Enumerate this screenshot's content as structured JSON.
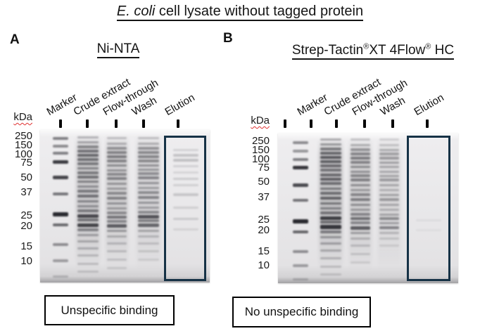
{
  "figure_title": {
    "italic_part": "E. coli",
    "normal_part": " cell lysate without tagged protein"
  },
  "panels": [
    {
      "panel_letter": "A",
      "method_title": "Ni-NTA",
      "kda_unit_label": "kDa",
      "ladder_labels": [
        "250",
        "150",
        "100",
        "75",
        "50",
        "37",
        "25",
        "20",
        "15",
        "10"
      ],
      "lanes": [
        {
          "name": "Marker",
          "bands": [
            [
              197,
              0.5,
              4
            ],
            [
              208,
              0.45,
              4
            ],
            [
              218,
              0.5,
              4
            ],
            [
              230,
              0.82,
              5
            ],
            [
              252,
              0.78,
              5
            ],
            [
              276,
              0.55,
              4
            ],
            [
              305,
              0.9,
              6
            ],
            [
              320,
              0.6,
              4
            ],
            [
              348,
              0.42,
              4
            ],
            [
              371,
              0.35,
              4
            ],
            [
              393,
              0.2,
              3
            ]
          ]
        },
        {
          "name": "Crude extract",
          "bands": [
            [
              195,
              0.25,
              3
            ],
            [
              202,
              0.3,
              3
            ],
            [
              209,
              0.42,
              4
            ],
            [
              215,
              0.5,
              4
            ],
            [
              221,
              0.55,
              4
            ],
            [
              227,
              0.5,
              4
            ],
            [
              233,
              0.45,
              4
            ],
            [
              239,
              0.4,
              3
            ],
            [
              246,
              0.45,
              4
            ],
            [
              252,
              0.5,
              4
            ],
            [
              258,
              0.42,
              3
            ],
            [
              265,
              0.35,
              3
            ],
            [
              272,
              0.45,
              4
            ],
            [
              279,
              0.5,
              4
            ],
            [
              286,
              0.4,
              3
            ],
            [
              293,
              0.35,
              3
            ],
            [
              300,
              0.45,
              4
            ],
            [
              307,
              0.72,
              5
            ],
            [
              313,
              0.5,
              4
            ],
            [
              320,
              0.75,
              5
            ],
            [
              327,
              0.42,
              4
            ],
            [
              334,
              0.3,
              3
            ],
            [
              343,
              0.26,
              3
            ],
            [
              353,
              0.24,
              3
            ],
            [
              363,
              0.2,
              3
            ],
            [
              375,
              0.18,
              3
            ],
            [
              386,
              0.15,
              3
            ]
          ]
        },
        {
          "name": "Flow-through",
          "bands": [
            [
              196,
              0.2,
              3
            ],
            [
              204,
              0.26,
              3
            ],
            [
              211,
              0.36,
              4
            ],
            [
              217,
              0.42,
              4
            ],
            [
              223,
              0.46,
              4
            ],
            [
              229,
              0.42,
              4
            ],
            [
              235,
              0.38,
              3
            ],
            [
              242,
              0.34,
              3
            ],
            [
              248,
              0.38,
              4
            ],
            [
              254,
              0.42,
              4
            ],
            [
              261,
              0.34,
              3
            ],
            [
              268,
              0.3,
              3
            ],
            [
              275,
              0.38,
              4
            ],
            [
              282,
              0.42,
              4
            ],
            [
              289,
              0.34,
              3
            ],
            [
              296,
              0.3,
              3
            ],
            [
              303,
              0.38,
              4
            ],
            [
              309,
              0.5,
              4
            ],
            [
              315,
              0.4,
              4
            ],
            [
              321,
              0.62,
              5
            ],
            [
              328,
              0.34,
              3
            ],
            [
              336,
              0.24,
              3
            ],
            [
              346,
              0.2,
              3
            ],
            [
              357,
              0.18,
              3
            ],
            [
              369,
              0.15,
              3
            ],
            [
              381,
              0.12,
              3
            ]
          ]
        },
        {
          "name": "Wash",
          "bands": [
            [
              196,
              0.2,
              3
            ],
            [
              204,
              0.26,
              3
            ],
            [
              211,
              0.36,
              4
            ],
            [
              217,
              0.4,
              4
            ],
            [
              223,
              0.42,
              4
            ],
            [
              229,
              0.4,
              4
            ],
            [
              235,
              0.36,
              3
            ],
            [
              241,
              0.33,
              3
            ],
            [
              247,
              0.37,
              4
            ],
            [
              253,
              0.42,
              4
            ],
            [
              260,
              0.34,
              3
            ],
            [
              267,
              0.29,
              3
            ],
            [
              274,
              0.37,
              4
            ],
            [
              281,
              0.42,
              4
            ],
            [
              288,
              0.33,
              3
            ],
            [
              295,
              0.29,
              3
            ],
            [
              302,
              0.38,
              4
            ],
            [
              308,
              0.68,
              5
            ],
            [
              314,
              0.45,
              4
            ],
            [
              320,
              0.58,
              5
            ],
            [
              328,
              0.28,
              3
            ],
            [
              336,
              0.2,
              3
            ],
            [
              346,
              0.16,
              3
            ],
            [
              357,
              0.13,
              3
            ],
            [
              369,
              0.1,
              3
            ]
          ]
        },
        {
          "name": "Elution",
          "bands": [
            [
              213,
              0.12,
              3
            ],
            [
              221,
              0.18,
              4
            ],
            [
              228,
              0.2,
              4
            ],
            [
              236,
              0.12,
              3
            ],
            [
              245,
              0.1,
              3
            ],
            [
              254,
              0.14,
              3
            ],
            [
              263,
              0.12,
              3
            ],
            [
              277,
              0.16,
              4
            ],
            [
              295,
              0.12,
              3
            ],
            [
              311,
              0.14,
              3
            ],
            [
              326,
              0.09,
              3
            ]
          ]
        }
      ],
      "result_caption": "Unspecific binding"
    },
    {
      "panel_letter": "B",
      "method_title_parts": {
        "name1": "Strep-Tactin",
        "reg1": "®",
        "name2": "XT 4Flow",
        "reg2": "®",
        "name3": " HC"
      },
      "kda_unit_label": "kDa",
      "ladder_labels": [
        "250",
        "150",
        "100",
        "75",
        "50",
        "37",
        "25",
        "20",
        "15",
        "10"
      ],
      "lanes": [
        {
          "name": "Marker",
          "bands": [
            [
              203,
              0.45,
              4
            ],
            [
              215,
              0.4,
              4
            ],
            [
              227,
              0.5,
              4
            ],
            [
              238,
              0.85,
              5
            ],
            [
              263,
              0.75,
              5
            ],
            [
              285,
              0.55,
              4
            ],
            [
              315,
              0.9,
              6
            ],
            [
              330,
              0.62,
              4
            ],
            [
              358,
              0.42,
              4
            ],
            [
              378,
              0.35,
              4
            ],
            [
              397,
              0.2,
              3
            ]
          ]
        },
        {
          "name": "Crude extract",
          "bands": [
            [
              198,
              0.3,
              3
            ],
            [
              205,
              0.36,
              3
            ],
            [
              212,
              0.48,
              4
            ],
            [
              218,
              0.56,
              4
            ],
            [
              224,
              0.62,
              4
            ],
            [
              230,
              0.58,
              4
            ],
            [
              236,
              0.52,
              4
            ],
            [
              242,
              0.47,
              4
            ],
            [
              249,
              0.52,
              4
            ],
            [
              255,
              0.58,
              4
            ],
            [
              261,
              0.5,
              4
            ],
            [
              268,
              0.44,
              3
            ],
            [
              275,
              0.5,
              4
            ],
            [
              282,
              0.56,
              4
            ],
            [
              289,
              0.46,
              3
            ],
            [
              296,
              0.4,
              3
            ],
            [
              303,
              0.47,
              4
            ],
            [
              310,
              0.78,
              5
            ],
            [
              316,
              0.52,
              4
            ],
            [
              323,
              0.82,
              6
            ],
            [
              330,
              0.46,
              4
            ],
            [
              337,
              0.34,
              3
            ],
            [
              346,
              0.3,
              3
            ],
            [
              356,
              0.26,
              3
            ],
            [
              367,
              0.22,
              3
            ],
            [
              379,
              0.18,
              3
            ],
            [
              390,
              0.14,
              3
            ]
          ]
        },
        {
          "name": "Flow-through",
          "bands": [
            [
              198,
              0.2,
              3
            ],
            [
              206,
              0.26,
              3
            ],
            [
              213,
              0.36,
              4
            ],
            [
              219,
              0.42,
              4
            ],
            [
              225,
              0.46,
              4
            ],
            [
              231,
              0.42,
              4
            ],
            [
              237,
              0.38,
              3
            ],
            [
              244,
              0.35,
              3
            ],
            [
              250,
              0.4,
              4
            ],
            [
              256,
              0.44,
              4
            ],
            [
              263,
              0.36,
              3
            ],
            [
              270,
              0.3,
              3
            ],
            [
              277,
              0.4,
              4
            ],
            [
              284,
              0.44,
              4
            ],
            [
              291,
              0.36,
              3
            ],
            [
              298,
              0.3,
              3
            ],
            [
              305,
              0.4,
              4
            ],
            [
              311,
              0.52,
              4
            ],
            [
              317,
              0.4,
              4
            ],
            [
              324,
              0.62,
              5
            ],
            [
              331,
              0.3,
              3
            ],
            [
              339,
              0.22,
              3
            ],
            [
              349,
              0.18,
              3
            ],
            [
              361,
              0.14,
              3
            ],
            [
              373,
              0.11,
              3
            ]
          ]
        },
        {
          "name": "Wash",
          "bands": [
            [
              198,
              0.14,
              3
            ],
            [
              206,
              0.18,
              3
            ],
            [
              213,
              0.26,
              3
            ],
            [
              219,
              0.3,
              4
            ],
            [
              225,
              0.33,
              4
            ],
            [
              231,
              0.3,
              3
            ],
            [
              237,
              0.27,
              3
            ],
            [
              244,
              0.25,
              3
            ],
            [
              250,
              0.28,
              3
            ],
            [
              256,
              0.32,
              4
            ],
            [
              263,
              0.26,
              3
            ],
            [
              270,
              0.21,
              3
            ],
            [
              277,
              0.28,
              3
            ],
            [
              284,
              0.32,
              4
            ],
            [
              291,
              0.26,
              3
            ],
            [
              298,
              0.21,
              3
            ],
            [
              305,
              0.28,
              3
            ],
            [
              311,
              0.4,
              4
            ],
            [
              317,
              0.3,
              3
            ],
            [
              324,
              0.44,
              4
            ],
            [
              331,
              0.2,
              3
            ],
            [
              339,
              0.14,
              3
            ],
            [
              349,
              0.1,
              3
            ]
          ]
        },
        {
          "name": "Elution",
          "bands": [
            [
              313,
              0.05,
              3
            ],
            [
              327,
              0.04,
              3
            ]
          ]
        }
      ],
      "result_caption": "No unspecific binding"
    }
  ],
  "colors": {
    "elution_box_border": "#163246",
    "caption_box_border": "#000000",
    "kda_underline": "#e03131"
  }
}
